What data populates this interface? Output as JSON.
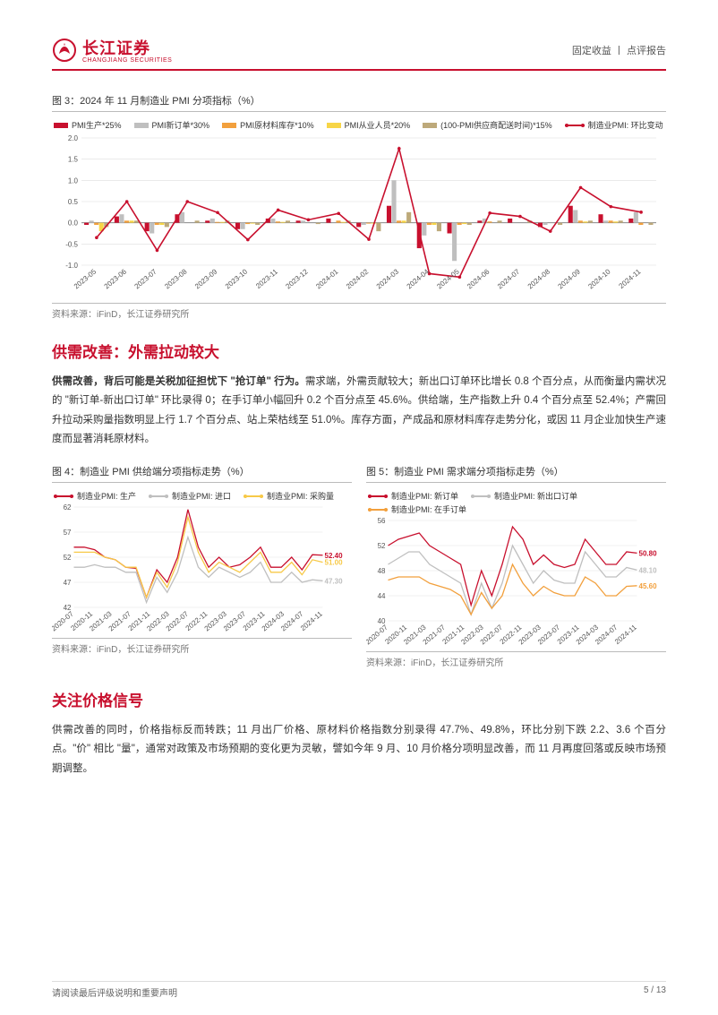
{
  "header": {
    "logo_cn": "长江证券",
    "logo_en": "CHANGJIANG SECURITIES",
    "right_label": "固定收益 丨 点评报告"
  },
  "fig3": {
    "caption": "图 3：2024 年 11 月制造业 PMI 分项指标（%）",
    "source": "资料来源：iFinD，长江证券研究所",
    "type": "bar+line",
    "legend": [
      {
        "label": "PMI生产*25%",
        "color": "#c8102e",
        "kind": "bar"
      },
      {
        "label": "PMI新订单*30%",
        "color": "#bfbfbf",
        "kind": "bar"
      },
      {
        "label": "PMI原材料库存*10%",
        "color": "#f2a03d",
        "kind": "bar"
      },
      {
        "label": "PMI从业人员*20%",
        "color": "#f7d547",
        "kind": "bar"
      },
      {
        "label": "(100-PMI供应商配送时间)*15%",
        "color": "#bda97a",
        "kind": "bar"
      },
      {
        "label": "制造业PMI: 环比变动",
        "color": "#c8102e",
        "kind": "line"
      }
    ],
    "categories": [
      "2023-05",
      "2023-06",
      "2023-07",
      "2023-08",
      "2023-09",
      "2023-10",
      "2023-11",
      "2023-12",
      "2024-01",
      "2024-02",
      "2024-03",
      "2024-04",
      "2024-05",
      "2024-06",
      "2024-07",
      "2024-08",
      "2024-09",
      "2024-10",
      "2024-11"
    ],
    "series": {
      "prod": [
        -0.05,
        0.15,
        -0.2,
        0.2,
        0.05,
        -0.15,
        0.1,
        0.05,
        0.1,
        -0.1,
        0.4,
        -0.6,
        -0.25,
        0.05,
        0.1,
        -0.1,
        0.4,
        0.2,
        0.1
      ],
      "orders": [
        0.05,
        0.2,
        -0.25,
        0.25,
        0.1,
        -0.15,
        0.1,
        0.05,
        0.0,
        -0.05,
        1.0,
        -0.3,
        -0.9,
        0.1,
        0.0,
        -0.05,
        0.3,
        0.05,
        0.25
      ],
      "raw": [
        -0.05,
        0.05,
        -0.05,
        0.0,
        0.02,
        -0.03,
        0.03,
        0.0,
        0.05,
        -0.02,
        0.05,
        -0.05,
        -0.05,
        0.03,
        0.0,
        0.0,
        0.05,
        0.05,
        -0.05
      ],
      "emp": [
        -0.2,
        0.05,
        -0.05,
        0.0,
        0.02,
        -0.02,
        0.02,
        0.0,
        0.02,
        -0.02,
        0.05,
        -0.05,
        -0.03,
        0.0,
        0.0,
        0.0,
        0.03,
        0.03,
        0.0
      ],
      "deliv": [
        -0.1,
        0.05,
        -0.1,
        0.05,
        0.05,
        -0.05,
        0.05,
        -0.03,
        0.05,
        -0.2,
        0.25,
        -0.2,
        -0.05,
        0.05,
        0.05,
        -0.05,
        0.05,
        0.05,
        -0.05
      ],
      "line": [
        -0.35,
        0.5,
        -0.65,
        0.5,
        0.24,
        -0.4,
        0.3,
        0.07,
        0.22,
        -0.39,
        1.75,
        -1.2,
        -1.28,
        0.23,
        0.15,
        -0.2,
        0.83,
        0.38,
        0.25
      ]
    },
    "ylim": [
      -1.0,
      2.0
    ],
    "ytick_step": 0.5,
    "colors": {
      "prod": "#c8102e",
      "orders": "#bfbfbf",
      "raw": "#f2a03d",
      "emp": "#f7d547",
      "deliv": "#bda97a",
      "line": "#c8102e"
    },
    "background": "#ffffff",
    "grid_color": "#dddddd",
    "axis_color": "#888888",
    "bar_group_width": 0.82,
    "line_width": 1.6
  },
  "section1": {
    "heading": "供需改善：外需拉动较大",
    "text_lead": "供需改善，背后可能是关税加征担忧下 \"抢订单\" 行为。",
    "text_rest": "需求端，外需贡献较大；新出口订单环比增长 0.8 个百分点，从而衡量内需状况的 \"新订单-新出口订单\" 环比录得 0；在手订单小幅回升 0.2 个百分点至 45.6%。供给端，生产指数上升 0.4 个百分点至 52.4%；产需回升拉动采购量指数明显上行 1.7 个百分点、站上荣枯线至 51.0%。库存方面，产成品和原材料库存走势分化，或因 11 月企业加快生产速度而显著消耗原材料。"
  },
  "fig4": {
    "caption": "图 4：制造业 PMI 供给端分项指标走势（%）",
    "source": "资料来源：iFinD，长江证券研究所",
    "type": "line",
    "legend": [
      {
        "label": "制造业PMI: 生产",
        "color": "#c8102e"
      },
      {
        "label": "制造业PMI: 进口",
        "color": "#bfbfbf"
      },
      {
        "label": "制造业PMI: 采购量",
        "color": "#f7c948"
      }
    ],
    "x_labels": [
      "2020-07",
      "2020-11",
      "2021-03",
      "2021-07",
      "2021-11",
      "2022-03",
      "2022-07",
      "2022-11",
      "2023-03",
      "2023-07",
      "2023-11",
      "2024-03",
      "2024-07",
      "2024-11"
    ],
    "ylim": [
      42,
      62
    ],
    "yticks": [
      42,
      47,
      52,
      57,
      62
    ],
    "end_values": {
      "prod": "52.40",
      "purchase": "51.00",
      "import": "47.30"
    },
    "colors": {
      "prod": "#c8102e",
      "import": "#bfbfbf",
      "purchase": "#f7c948"
    },
    "line_width": 1.3,
    "background": "#ffffff",
    "grid_color": "#e6e6e6",
    "axis_color": "#888888",
    "prod": [
      54,
      54,
      53.5,
      52,
      51.5,
      50,
      49.8,
      44,
      49.5,
      47,
      52,
      61.5,
      54,
      50,
      52,
      50,
      50.5,
      52,
      54,
      50,
      50,
      52,
      49.5,
      52.5,
      52.4
    ],
    "import": [
      50,
      50,
      50.5,
      50,
      50,
      49,
      49,
      43,
      48,
      45,
      49,
      56,
      50,
      48,
      50,
      49,
      48,
      49,
      51,
      47,
      47,
      49,
      47,
      47.5,
      47.3
    ],
    "purchase": [
      53,
      53,
      53,
      52,
      51.5,
      50,
      50,
      44,
      49,
      46,
      51,
      60,
      53,
      49,
      51,
      50,
      49,
      51,
      53,
      49,
      49,
      51,
      48.5,
      51.5,
      51.0
    ]
  },
  "fig5": {
    "caption": "图 5：制造业 PMI 需求端分项指标走势（%）",
    "source": "资料来源：iFinD，长江证券研究所",
    "type": "line",
    "legend": [
      {
        "label": "制造业PMI: 新订单",
        "color": "#c8102e"
      },
      {
        "label": "制造业PMI: 新出口订单",
        "color": "#bfbfbf"
      },
      {
        "label": "制造业PMI: 在手订单",
        "color": "#f2a03d"
      }
    ],
    "x_labels": [
      "2020-07",
      "2020-11",
      "2021-03",
      "2021-07",
      "2021-11",
      "2022-03",
      "2022-07",
      "2022-11",
      "2023-03",
      "2023-07",
      "2023-11",
      "2024-03",
      "2024-07",
      "2024-11"
    ],
    "ylim": [
      40,
      56
    ],
    "yticks": [
      40,
      44,
      48,
      52,
      56
    ],
    "end_values": {
      "new_orders": "50.80",
      "export": "48.10",
      "backlog": "45.60"
    },
    "colors": {
      "new_orders": "#c8102e",
      "export": "#bfbfbf",
      "backlog": "#f2a03d"
    },
    "line_width": 1.3,
    "background": "#ffffff",
    "grid_color": "#e6e6e6",
    "axis_color": "#888888",
    "new_orders": [
      52,
      53,
      53.5,
      54,
      52,
      51,
      50,
      49,
      42.5,
      48,
      44,
      49,
      55,
      53,
      49,
      50.5,
      49,
      48.5,
      49,
      53,
      51,
      49,
      49,
      51,
      50.8
    ],
    "export": [
      49,
      50,
      51,
      51,
      49,
      48,
      47,
      46,
      41,
      46,
      42,
      46,
      52,
      49,
      46,
      48,
      46.5,
      46,
      46,
      51,
      49,
      47,
      47,
      48.5,
      48.1
    ],
    "backlog": [
      46.5,
      47,
      47,
      47,
      46,
      45.5,
      45,
      44,
      41,
      44.5,
      42,
      44,
      49,
      46,
      44,
      45.5,
      44.5,
      44,
      44,
      47,
      46,
      44,
      44,
      45.5,
      45.6
    ]
  },
  "section2": {
    "heading": "关注价格信号",
    "text": "供需改善的同时，价格指标反而转跌；11 月出厂价格、原材料价格指数分别录得 47.7%、49.8%，环比分别下跌 2.2、3.6 个百分点。\"价\" 相比 \"量\"，通常对政策及市场预期的变化更为灵敏，譬如今年 9 月、10 月价格分项明显改善，而 11 月再度回落或反映市场预期调整。"
  },
  "footer": {
    "left": "请阅读最后评级说明和重要声明",
    "right": "5 / 13"
  }
}
